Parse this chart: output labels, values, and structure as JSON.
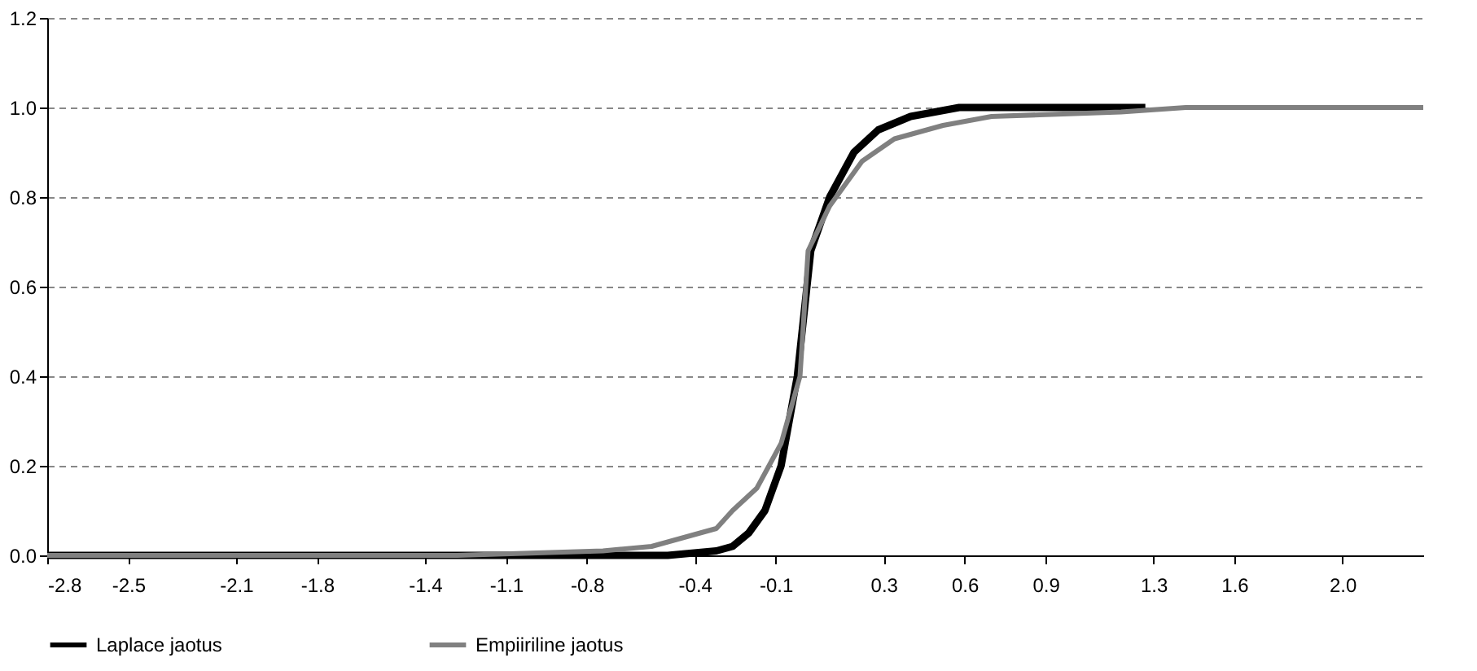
{
  "chart_data": {
    "type": "line",
    "xlim": [
      -2.8,
      2.3
    ],
    "ylim": [
      0,
      1.2
    ],
    "xticks": [
      -2.8,
      -2.5,
      -2.1,
      -1.8,
      -1.4,
      -1.1,
      -0.8,
      -0.4,
      -0.1,
      0.3,
      0.6,
      0.9,
      1.3,
      1.6,
      {
        "value": 2.0,
        "label": "2.0"
      }
    ],
    "yticks": [
      {
        "value": 0,
        "label": "0.0"
      },
      {
        "value": 0.2,
        "label": "0.2"
      },
      {
        "value": 0.4,
        "label": "0.4"
      },
      {
        "value": 0.6,
        "label": "0.6"
      },
      {
        "value": 0.8,
        "label": "0.8"
      },
      {
        "value": 1.0,
        "label": "1.0"
      },
      {
        "value": 1.2,
        "label": "1.2"
      }
    ],
    "grid": "y",
    "legend": "bottom",
    "line_style": "solid",
    "series": [
      {
        "name": "Laplace jaotus",
        "color": "#000000",
        "x": [
          -2.8,
          -0.5,
          -0.32,
          -0.26,
          -0.2,
          -0.14,
          -0.08,
          -0.02,
          0.03,
          0.1,
          0.19,
          0.28,
          0.4,
          0.58,
          1.27
        ],
        "values": [
          0,
          0,
          0.01,
          0.02,
          0.05,
          0.1,
          0.2,
          0.4,
          0.68,
          0.8,
          0.9,
          0.95,
          0.98,
          1.0,
          1.0
        ]
      },
      {
        "name": "Empiiriline jaotus",
        "color": "#808080",
        "x": [
          -2.8,
          -1.28,
          -0.74,
          -0.56,
          -0.44,
          -0.32,
          -0.26,
          -0.17,
          -0.08,
          -0.01,
          0.02,
          0.1,
          0.22,
          0.34,
          0.52,
          0.7,
          1.18,
          1.42,
          2.3
        ],
        "values": [
          0,
          0,
          0.01,
          0.02,
          0.04,
          0.06,
          0.1,
          0.15,
          0.25,
          0.4,
          0.68,
          0.78,
          0.88,
          0.93,
          0.96,
          0.98,
          0.99,
          1.0,
          1.0
        ]
      }
    ]
  }
}
